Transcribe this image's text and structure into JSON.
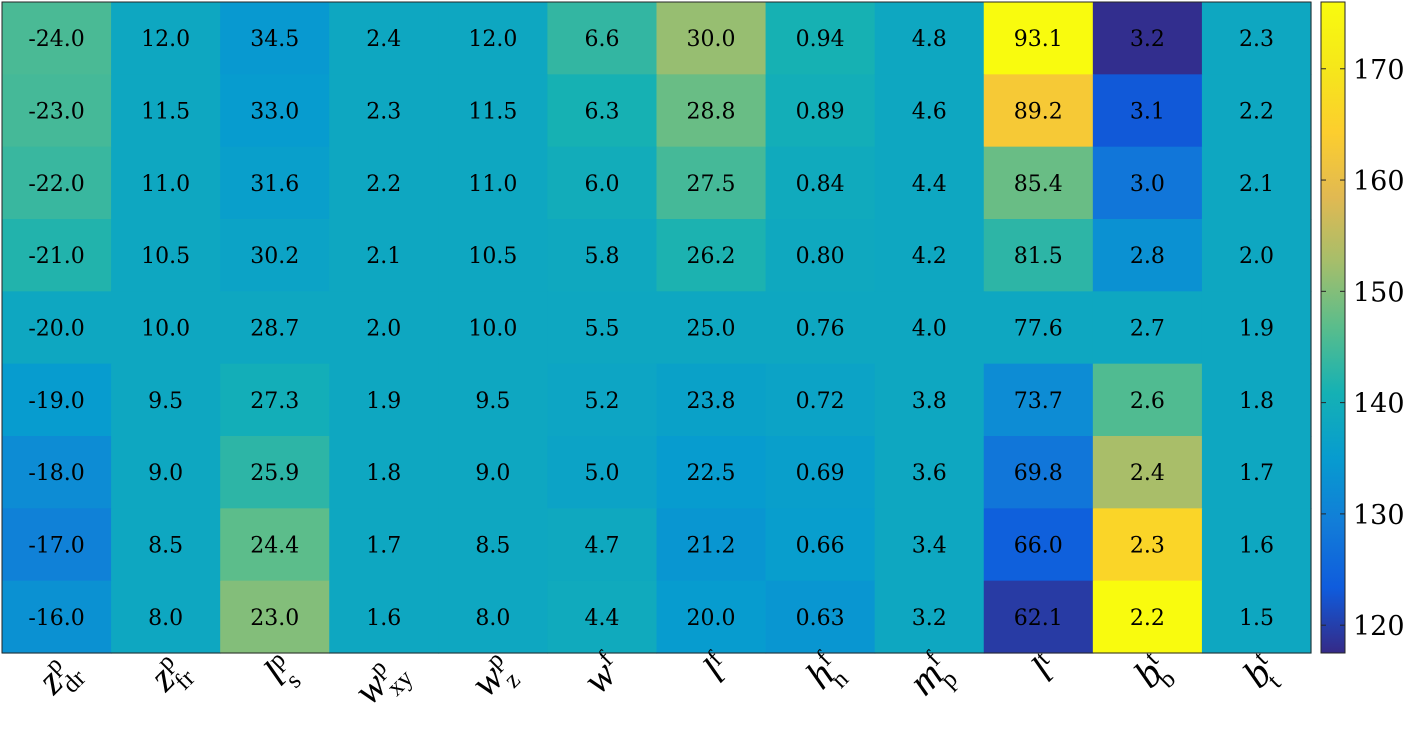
{
  "chart_data": {
    "type": "heatmap",
    "title": "",
    "xlabel": "",
    "ylabel": "",
    "columns": [
      {
        "base": "z",
        "sup": "p",
        "sub": "dr"
      },
      {
        "base": "z",
        "sup": "p",
        "sub": "fr"
      },
      {
        "base": "l",
        "sup": "p",
        "sub": "s"
      },
      {
        "base": "w",
        "sup": "p",
        "sub": "xy"
      },
      {
        "base": "w",
        "sup": "p",
        "sub": "z"
      },
      {
        "base": "w",
        "sup": "f",
        "sub": ""
      },
      {
        "base": "l",
        "sup": "f",
        "sub": ""
      },
      {
        "base": "h",
        "sup": "f",
        "sub": "n"
      },
      {
        "base": "m",
        "sup": "f",
        "sub": "p"
      },
      {
        "base": "l",
        "sup": "t",
        "sub": ""
      },
      {
        "base": "b",
        "sup": "t",
        "sub": "b"
      },
      {
        "base": "b",
        "sup": "t",
        "sub": "t"
      }
    ],
    "cell_labels": [
      [
        "-24.0",
        "12.0",
        "34.5",
        "2.4",
        "12.0",
        "6.6",
        "30.0",
        "0.94",
        "4.8",
        "93.1",
        "3.2",
        "2.3"
      ],
      [
        "-23.0",
        "11.5",
        "33.0",
        "2.3",
        "11.5",
        "6.3",
        "28.8",
        "0.89",
        "4.6",
        "89.2",
        "3.1",
        "2.2"
      ],
      [
        "-22.0",
        "11.0",
        "31.6",
        "2.2",
        "11.0",
        "6.0",
        "27.5",
        "0.84",
        "4.4",
        "85.4",
        "3.0",
        "2.1"
      ],
      [
        "-21.0",
        "10.5",
        "30.2",
        "2.1",
        "10.5",
        "5.8",
        "26.2",
        "0.80",
        "4.2",
        "81.5",
        "2.8",
        "2.0"
      ],
      [
        "-20.0",
        "10.0",
        "28.7",
        "2.0",
        "10.0",
        "5.5",
        "25.0",
        "0.76",
        "4.0",
        "77.6",
        "2.7",
        "1.9"
      ],
      [
        "-19.0",
        "9.5",
        "27.3",
        "1.9",
        "9.5",
        "5.2",
        "23.8",
        "0.72",
        "3.8",
        "73.7",
        "2.6",
        "1.8"
      ],
      [
        "-18.0",
        "9.0",
        "25.9",
        "1.8",
        "9.0",
        "5.0",
        "22.5",
        "0.69",
        "3.6",
        "69.8",
        "2.4",
        "1.7"
      ],
      [
        "-17.0",
        "8.5",
        "24.4",
        "1.7",
        "8.5",
        "4.7",
        "21.2",
        "0.66",
        "3.4",
        "66.0",
        "2.3",
        "1.6"
      ],
      [
        "-16.0",
        "8.0",
        "23.0",
        "1.6",
        "8.0",
        "4.4",
        "20.0",
        "0.63",
        "3.2",
        "62.1",
        "2.2",
        "1.5"
      ]
    ],
    "color_values": [
      [
        145.5,
        138.0,
        134.5,
        138.0,
        138.0,
        143.5,
        151.5,
        141.0,
        138.0,
        176.0,
        118.0,
        138.0
      ],
      [
        145.0,
        138.0,
        135.0,
        138.0,
        138.0,
        141.0,
        148.0,
        140.0,
        138.0,
        163.0,
        123.0,
        138.0
      ],
      [
        144.0,
        138.0,
        136.0,
        138.0,
        138.0,
        139.5,
        145.0,
        139.0,
        138.0,
        148.0,
        128.0,
        138.0
      ],
      [
        142.0,
        138.0,
        137.0,
        138.0,
        138.0,
        138.5,
        141.5,
        138.5,
        138.0,
        143.0,
        133.0,
        138.0
      ],
      [
        138.0,
        138.0,
        138.0,
        138.0,
        138.0,
        138.0,
        138.0,
        138.0,
        138.0,
        138.0,
        138.0,
        138.0
      ],
      [
        135.0,
        138.0,
        140.0,
        138.0,
        138.0,
        137.5,
        136.5,
        137.0,
        138.0,
        132.0,
        146.0,
        138.0
      ],
      [
        132.0,
        138.0,
        143.0,
        138.0,
        138.0,
        137.0,
        135.0,
        136.0,
        138.0,
        128.0,
        153.0,
        138.0
      ],
      [
        130.0,
        138.0,
        147.0,
        138.0,
        138.0,
        138.5,
        134.0,
        135.5,
        138.0,
        124.0,
        166.0,
        138.0
      ],
      [
        133.0,
        138.0,
        150.0,
        138.0,
        138.0,
        139.0,
        135.0,
        134.0,
        138.0,
        119.5,
        176.0,
        138.0
      ]
    ],
    "colorbar": {
      "min": 117.5,
      "max": 176,
      "ticks": [
        120,
        130,
        140,
        150,
        160,
        170
      ],
      "colormap": "parula"
    }
  }
}
